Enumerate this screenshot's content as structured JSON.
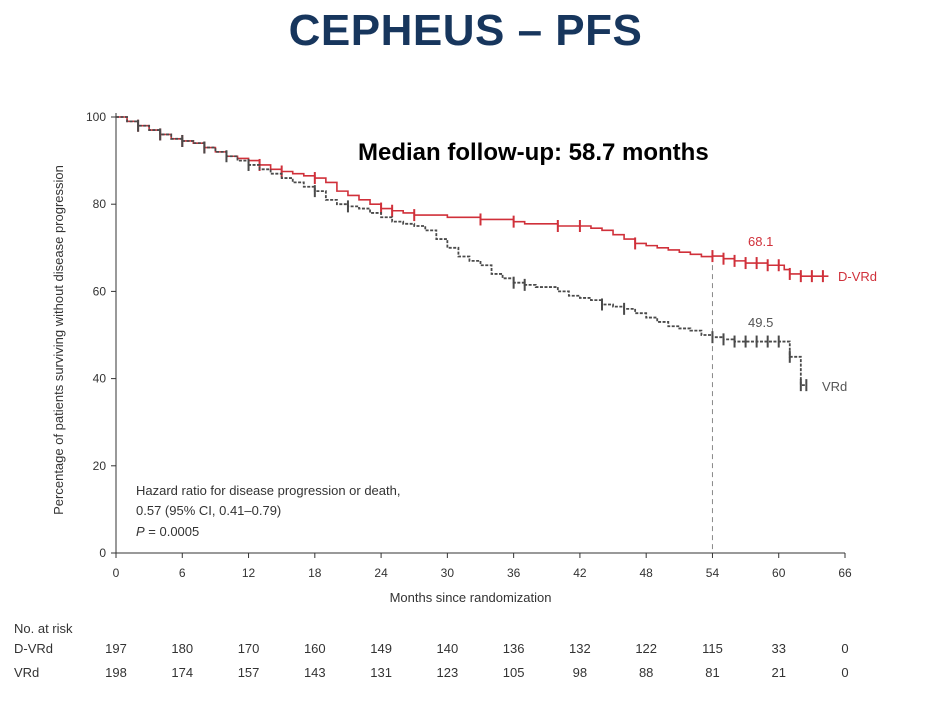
{
  "slide": {
    "title": "CEPHEUS – PFS"
  },
  "annotations": {
    "follow_up": "Median follow-up: 58.7 months",
    "hr_line1": "Hazard ratio for disease progression or death,",
    "hr_line2": "0.57 (95% CI, 0.41–0.79)",
    "p_label": "P",
    "p_value": " = 0.0005",
    "dvrd_median": "68.1",
    "vrd_median": "49.5",
    "dvrd_end_label": "D-VRd",
    "vrd_end_label": "VRd"
  },
  "colors": {
    "title": "#17365d",
    "dvrd": "#d0303a",
    "vrd": "#4a4a4a",
    "dashed_ref": "#888888"
  },
  "chart_data": {
    "type": "line",
    "xlabel": "Months since randomization",
    "ylabel": "Percentage of patients surviving without disease progression",
    "xlim": [
      0,
      66
    ],
    "ylim": [
      0,
      100
    ],
    "xticks": [
      0,
      6,
      12,
      18,
      24,
      30,
      36,
      42,
      48,
      54,
      60,
      66
    ],
    "yticks": [
      0,
      20,
      40,
      60,
      80,
      100
    ],
    "reference_line_x": 54,
    "series": [
      {
        "name": "D-VRd",
        "step": true,
        "x": [
          0,
          1,
          2,
          3,
          4,
          5,
          6,
          7,
          8,
          9,
          10,
          11,
          12,
          13,
          14,
          15,
          16,
          17,
          18,
          19,
          20,
          21,
          22,
          23,
          24,
          25,
          26,
          27,
          30,
          33,
          36,
          37,
          39,
          40,
          42,
          43,
          44,
          45,
          46,
          47,
          48,
          49,
          50,
          51,
          52,
          53,
          54,
          55,
          56,
          57,
          58,
          59,
          60,
          60.5,
          61,
          62,
          63,
          64
        ],
        "y": [
          100,
          99,
          98,
          97,
          96,
          95,
          94.5,
          94,
          93,
          92,
          91,
          90.5,
          90,
          89,
          88,
          87.5,
          87,
          86.5,
          86,
          85,
          83,
          82,
          81,
          80,
          79,
          78.5,
          78,
          77.5,
          77,
          76.5,
          76,
          75.5,
          75.5,
          75,
          75,
          74.5,
          74,
          73,
          72,
          71,
          70.5,
          70,
          69.5,
          69,
          68.5,
          68,
          68.1,
          67.5,
          67,
          66.5,
          66.5,
          66,
          66,
          65,
          64,
          63.5,
          63.5,
          63.5
        ],
        "censor_x": [
          2,
          4,
          6,
          8,
          13,
          15,
          18,
          24,
          25,
          27,
          33,
          36,
          40,
          42,
          47,
          54,
          55,
          56,
          57,
          58,
          59,
          60,
          61,
          62,
          63,
          64
        ]
      },
      {
        "name": "VRd",
        "step": true,
        "x": [
          0,
          1,
          2,
          3,
          4,
          5,
          6,
          7,
          8,
          9,
          10,
          11,
          12,
          13,
          14,
          15,
          16,
          17,
          18,
          19,
          20,
          21,
          22,
          23,
          24,
          25,
          26,
          27,
          28,
          29,
          30,
          31,
          32,
          33,
          34,
          35,
          36,
          37,
          38,
          39,
          40,
          41,
          42,
          43,
          44,
          45,
          46,
          47,
          48,
          49,
          50,
          51,
          52,
          53,
          54,
          55,
          56,
          57,
          58,
          59,
          60,
          61,
          62
        ],
        "y": [
          100,
          99,
          98,
          97,
          96,
          95,
          94.5,
          94,
          93,
          92,
          91,
          90,
          89,
          88,
          87,
          86,
          85,
          84,
          83,
          81,
          80,
          79.5,
          79,
          78,
          77,
          76,
          75.5,
          75,
          74,
          72,
          70,
          68,
          67,
          66,
          64,
          63,
          62,
          61.5,
          61,
          61,
          60,
          59,
          58.5,
          58,
          57,
          56.5,
          56,
          55,
          54,
          53,
          52,
          51.5,
          51,
          50,
          49.5,
          49,
          48.5,
          48.5,
          48.5,
          48.5,
          48.5,
          45,
          38.5
        ],
        "censor_x": [
          2,
          4,
          6,
          8,
          10,
          12,
          18,
          21,
          36,
          37,
          44,
          46,
          54,
          55,
          56,
          57,
          58,
          59,
          60,
          61,
          62,
          62.5
        ]
      }
    ]
  },
  "risk_table": {
    "title": "No. at risk",
    "rows": [
      {
        "label": "D-VRd",
        "values": [
          "197",
          "180",
          "170",
          "160",
          "149",
          "140",
          "136",
          "132",
          "122",
          "115",
          "33",
          "0"
        ]
      },
      {
        "label": "VRd",
        "values": [
          "198",
          "174",
          "157",
          "143",
          "131",
          "123",
          "105",
          "98",
          "88",
          "81",
          "21",
          "0"
        ]
      }
    ]
  }
}
